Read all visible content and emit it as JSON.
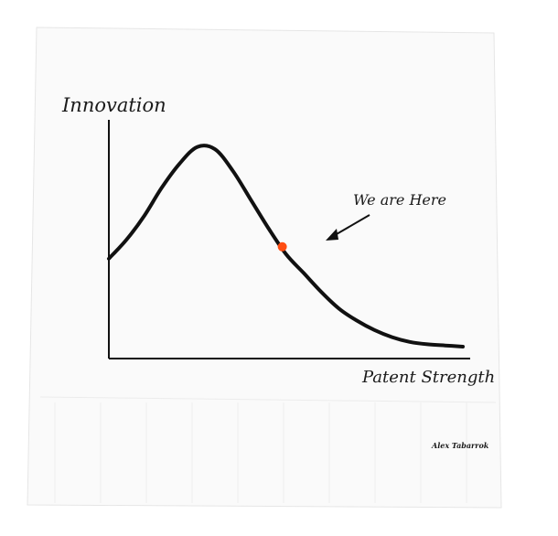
{
  "chart_data": {
    "type": "line",
    "title": "",
    "xlabel": "Patent Strength",
    "ylabel": "Innovation",
    "xlim": [
      0,
      100
    ],
    "ylim": [
      0,
      100
    ],
    "grid": false,
    "series": [
      {
        "color": "#111111",
        "points": [
          [
            0,
            42
          ],
          [
            5,
            50
          ],
          [
            10,
            60
          ],
          [
            15,
            72
          ],
          [
            20,
            82
          ],
          [
            25,
            89
          ],
          [
            30,
            88
          ],
          [
            35,
            79
          ],
          [
            40,
            67
          ],
          [
            45,
            55
          ],
          [
            50,
            44
          ],
          [
            55,
            36
          ],
          [
            60,
            28
          ],
          [
            65,
            21
          ],
          [
            70,
            16
          ],
          [
            75,
            12
          ],
          [
            80,
            9
          ],
          [
            85,
            7
          ],
          [
            90,
            6
          ],
          [
            95,
            5.5
          ],
          [
            100,
            5
          ]
        ]
      }
    ],
    "annotations": [
      {
        "text": "We are Here",
        "point": [
          49,
          47
        ],
        "marker_color": "#ff4d12"
      }
    ]
  },
  "credit": "Alex Tabarrok",
  "colors": {
    "napkin": "#fafafa",
    "ink": "#111111",
    "marker": "#ff4d12"
  }
}
